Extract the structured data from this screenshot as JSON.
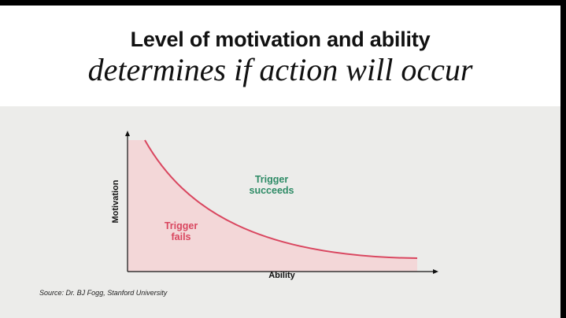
{
  "title": {
    "line1": "Level of motivation and ability",
    "line2": "determines if action will occur"
  },
  "diagram": {
    "y_axis_label": "Motivation",
    "x_axis_label": "Ability",
    "region_above_curve": "Trigger\nsucceeds",
    "region_below_curve": "Trigger\nfails",
    "curve_shape": "decreasing convex (action line)"
  },
  "source": "Source: Dr. BJ Fogg, Stanford University",
  "colors": {
    "curve": "#d9465f",
    "fail_fill": "#f3d7d8",
    "succeeds_text": "#2e8b66",
    "fails_text": "#d9465f",
    "title_background": "#ffffff",
    "slide_background": "#ececea"
  }
}
